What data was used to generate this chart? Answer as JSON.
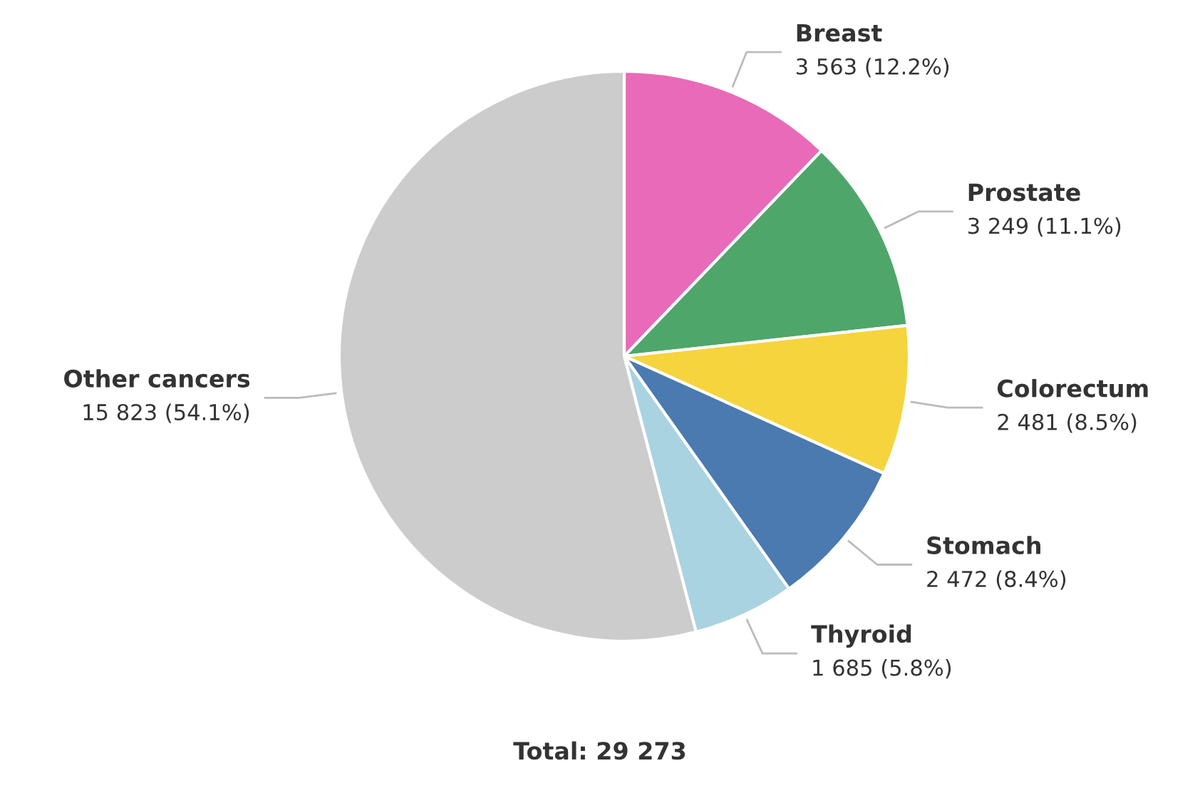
{
  "chart_data": {
    "type": "pie",
    "categories": [
      "Breast",
      "Prostate",
      "Colorectum",
      "Stomach",
      "Thyroid",
      "Other cancers"
    ],
    "values": [
      3563,
      3249,
      2481,
      2472,
      1685,
      15823
    ],
    "value_labels": [
      "3 563 (12.2%)",
      "3 249 (11.1%)",
      "2 481 (8.5%)",
      "2 472 (8.4%)",
      "1 685 (5.8%)",
      "15 823 (54.1%)"
    ],
    "colors": [
      "#e86ab8",
      "#4fa66a",
      "#f5d43e",
      "#4a7ab0",
      "#a9d3e0",
      "#cccccc"
    ],
    "annotations": [
      "Total: 29 273"
    ]
  }
}
